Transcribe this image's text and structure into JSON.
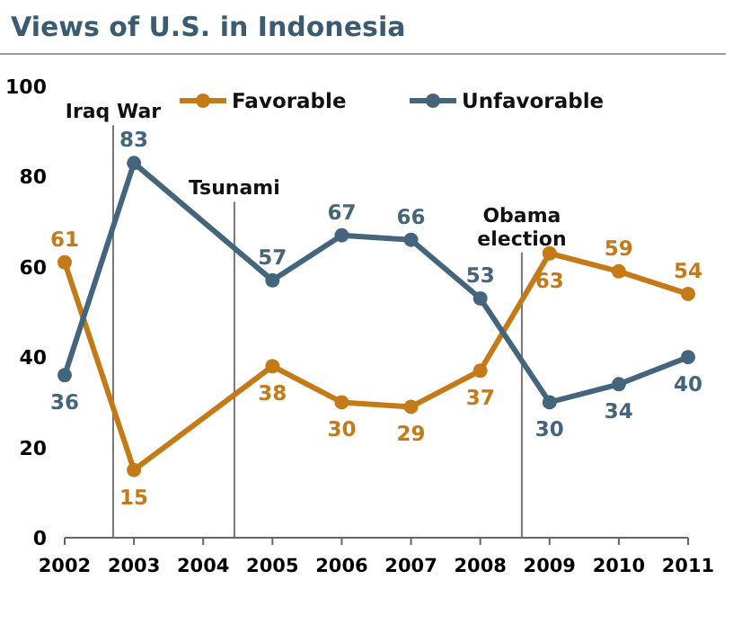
{
  "chart_data": {
    "type": "line",
    "title": "Views of U.S. in Indonesia",
    "x": [
      2002,
      2003,
      2005,
      2006,
      2007,
      2008,
      2009,
      2010,
      2011
    ],
    "xlim": [
      2002,
      2011
    ],
    "xticks": [
      2002,
      2003,
      2004,
      2005,
      2006,
      2007,
      2008,
      2009,
      2010,
      2011
    ],
    "ylim": [
      0,
      100
    ],
    "yticks": [
      0,
      20,
      40,
      60,
      80,
      100
    ],
    "series": [
      {
        "name": "Favorable",
        "color": "#c47a16",
        "values": [
          61,
          15,
          38,
          30,
          29,
          37,
          63,
          59,
          54
        ]
      },
      {
        "name": "Unfavorable",
        "color": "#44657c",
        "values": [
          36,
          83,
          57,
          67,
          66,
          53,
          30,
          34,
          40
        ]
      }
    ],
    "ref_lines": [
      {
        "axis": "x",
        "value": 2002.7,
        "label": "Iraq War"
      },
      {
        "axis": "x",
        "value": 2004.45,
        "label": "Tsunami"
      },
      {
        "axis": "x",
        "value": 2008.6,
        "label": "Obama election"
      }
    ],
    "marker": "circle",
    "line_style": "solid",
    "data_labels": true,
    "legend": "top",
    "grid": false
  }
}
